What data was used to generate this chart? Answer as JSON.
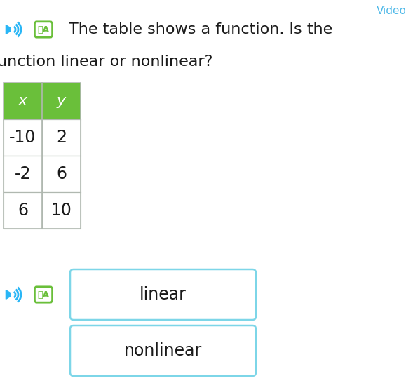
{
  "title_line1": "The table shows a function. Is the",
  "title_line2": "unction linear or nonlinear?",
  "table_headers": [
    "x",
    "y"
  ],
  "table_data": [
    [
      "-10",
      "2"
    ],
    [
      "-2",
      "6"
    ],
    [
      "6",
      "10"
    ]
  ],
  "header_bg": "#6abf3a",
  "header_text_color": "#ffffff",
  "cell_bg": "#ffffff",
  "cell_text_color": "#1a1a1a",
  "grid_color": "#b0b8b0",
  "answer_box1_text": "linear",
  "answer_box2_text": "nonlinear",
  "answer_box_border": "#7dd6e8",
  "bg_color": "#ffffff",
  "title_fontsize": 16,
  "table_fontsize": 16,
  "answer_fontsize": 16,
  "speaker_color": "#29b6f6",
  "translate_color": "#6abf3a",
  "video_color": "#4db8e8"
}
